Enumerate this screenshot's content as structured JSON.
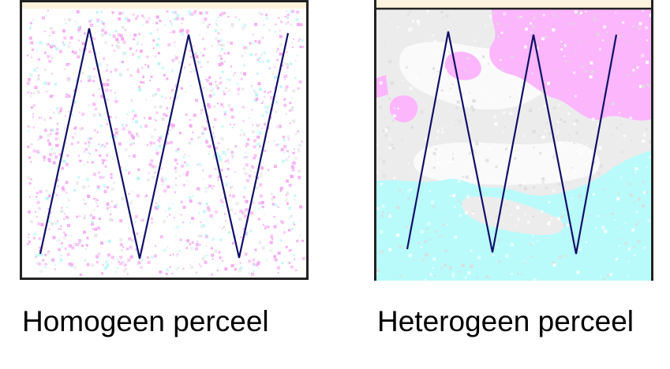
{
  "panels": [
    {
      "caption": "Homogeen perceel",
      "line_color": "#101068",
      "border_color": "#222222"
    },
    {
      "caption": "Heterogeen perceel",
      "line_color": "#101068",
      "border_color": "#222222"
    }
  ],
  "colors": {
    "background": "#ffffff",
    "speckle_pink": "#f4a6f0",
    "speckle_cyan": "#b8f6f6",
    "zone_pink": "#fcb6fc",
    "zone_grey": "#ececec",
    "zone_cyan": "#b9fbfb",
    "top_strip": "#fdf3dc"
  }
}
